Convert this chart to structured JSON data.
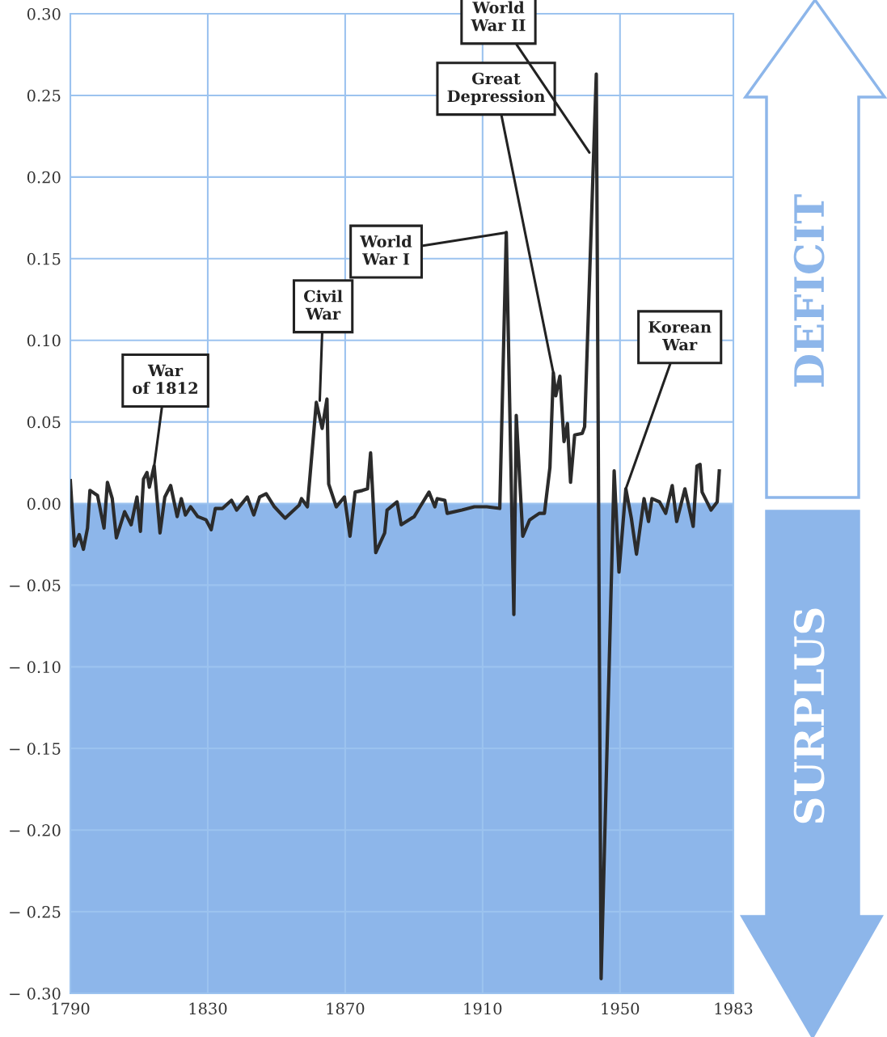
{
  "chart_data": {
    "type": "line",
    "x": [
      1790.0,
      1791.2,
      1792.6,
      1793.8,
      1795.0,
      1795.7,
      1797.9,
      1799.8,
      1800.8,
      1802.2,
      1803.4,
      1805.8,
      1807.7,
      1809.4,
      1810.4,
      1811.3,
      1812.3,
      1813.0,
      1814.4,
      1816.1,
      1817.5,
      1819.2,
      1821.1,
      1822.3,
      1823.5,
      1825.0,
      1827.1,
      1829.5,
      1831.0,
      1832.2,
      1834.3,
      1836.9,
      1838.4,
      1841.5,
      1843.4,
      1845.1,
      1847.0,
      1849.4,
      1852.5,
      1856.6,
      1857.3,
      1859.0,
      1861.6,
      1863.3,
      1864.7,
      1865.2,
      1867.4,
      1869.8,
      1871.4,
      1872.9,
      1875.0,
      1876.5,
      1877.4,
      1878.9,
      1881.5,
      1882.2,
      1885.1,
      1886.3,
      1890.1,
      1891.8,
      1894.4,
      1896.1,
      1896.8,
      1899.0,
      1899.7,
      1904.0,
      1907.6,
      1911.2,
      1915.0,
      1916.9,
      1919.1,
      1919.8,
      1921.7,
      1923.7,
      1925.1,
      1926.5,
      1928.0,
      1929.6,
      1930.6,
      1931.3,
      1932.5,
      1933.7,
      1934.7,
      1935.6,
      1936.8,
      1939.0,
      1939.7,
      1943.1,
      1944.5,
      1948.3,
      1949.7,
      1951.7,
      1953.3,
      1954.8,
      1957.0,
      1958.3,
      1959.3,
      1961.5,
      1963.3,
      1965.2,
      1966.5,
      1968.9,
      1971.3,
      1972.4,
      1973.3,
      1973.9,
      1976.5,
      1978.3,
      1978.9
    ],
    "series": [
      {
        "color": "#2b2b2b",
        "values": [
          0.014,
          -0.026,
          -0.019,
          -0.028,
          -0.015,
          0.008,
          0.005,
          -0.015,
          0.013,
          0.003,
          -0.021,
          -0.005,
          -0.013,
          0.004,
          -0.017,
          0.015,
          0.019,
          0.01,
          0.023,
          -0.018,
          0.004,
          0.011,
          -0.008,
          0.003,
          -0.007,
          -0.002,
          -0.008,
          -0.01,
          -0.016,
          -0.003,
          -0.003,
          0.002,
          -0.004,
          0.004,
          -0.007,
          0.004,
          0.006,
          -0.002,
          -0.009,
          -0.001,
          0.003,
          -0.002,
          0.062,
          0.046,
          0.064,
          0.012,
          -0.002,
          0.004,
          -0.02,
          0.007,
          0.008,
          0.009,
          0.031,
          -0.03,
          -0.018,
          -0.004,
          0.001,
          -0.013,
          -0.008,
          -0.002,
          0.007,
          -0.002,
          0.003,
          0.002,
          -0.006,
          -0.004,
          -0.002,
          -0.002,
          -0.003,
          0.166,
          -0.068,
          0.054,
          -0.02,
          -0.01,
          -0.008,
          -0.006,
          -0.006,
          0.022,
          0.08,
          0.066,
          0.078,
          0.038,
          0.049,
          0.013,
          0.042,
          0.043,
          0.047,
          0.263,
          -0.291,
          0.02,
          -0.042,
          0.009,
          -0.009,
          -0.031,
          0.003,
          -0.011,
          0.003,
          0.001,
          -0.006,
          0.011,
          -0.011,
          0.009,
          -0.014,
          0.023,
          0.024,
          0.007,
          -0.004,
          0.001,
          0.02
        ]
      }
    ],
    "xlim": [
      1790,
      1983
    ],
    "xticks": [
      1790,
      1830,
      1870,
      1910,
      1950,
      1983
    ],
    "ylim": [
      -0.3,
      0.3
    ],
    "yticks": [
      {
        "value": 0.3,
        "label": "0.30"
      },
      {
        "value": 0.25,
        "label": "0.25"
      },
      {
        "value": 0.2,
        "label": "0.20"
      },
      {
        "value": 0.15,
        "label": "0.15"
      },
      {
        "value": 0.1,
        "label": "0.10"
      },
      {
        "value": 0.05,
        "label": "0.05"
      },
      {
        "value": 0.0,
        "label": "0.00"
      },
      {
        "value": -0.05,
        "label": "− 0.05"
      },
      {
        "value": -0.1,
        "label": "− 0.10"
      },
      {
        "value": -0.15,
        "label": "− 0.15"
      },
      {
        "value": -0.2,
        "label": "− 0.20"
      },
      {
        "value": -0.25,
        "label": "− 0.25"
      },
      {
        "value": -0.3,
        "label": "− 0.30"
      }
    ],
    "grid": true,
    "line_style": "solid",
    "marker": "none",
    "bands": [
      {
        "axis": "y",
        "from": -0.3,
        "to": 0.0,
        "color": "#8db6ea"
      }
    ],
    "annotations": [
      {
        "text": "War\nof 1812",
        "x": 1814.4,
        "y": 0.023
      },
      {
        "text": "Civil\nWar",
        "x": 1862.6,
        "y": 0.063
      },
      {
        "text": "World\nWar I",
        "x": 1916.9,
        "y": 0.166
      },
      {
        "text": "Great\nDepression",
        "x": 1930.6,
        "y": 0.08
      },
      {
        "text": "World\nWar II",
        "x": 1941.1,
        "y": 0.215
      },
      {
        "text": "Korean\nWar",
        "x": 1951.7,
        "y": 0.009
      },
      "DEFICIT",
      "SURPLUS"
    ]
  }
}
